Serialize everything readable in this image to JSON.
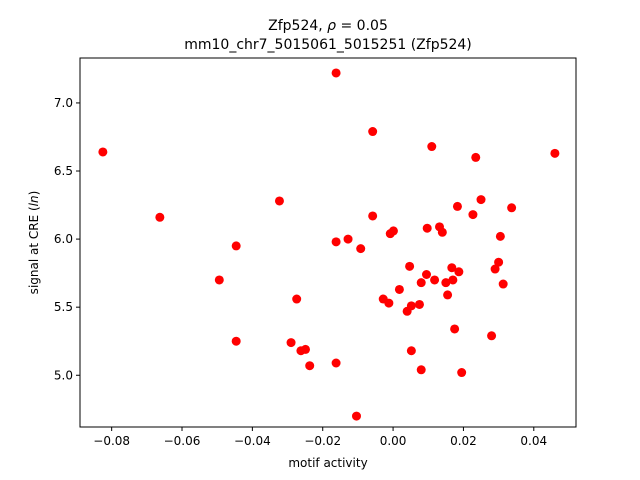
{
  "chart_data": {
    "type": "scatter",
    "title_line1_prefix": "Zfp524, ",
    "title_line1_rho": "ρ",
    "title_line1_suffix": " = 0.05",
    "title_line2": "mm10_chr7_5015061_5015251 (Zfp524)",
    "xlabel": "motif activity",
    "ylabel_prefix": "signal at CRE (",
    "ylabel_italic": "ln",
    "ylabel_suffix": ")",
    "xlim": [
      -0.089,
      0.052
    ],
    "ylim": [
      4.62,
      7.33
    ],
    "x_ticks": [
      -0.08,
      -0.06,
      -0.04,
      -0.02,
      0.0,
      0.02,
      0.04
    ],
    "x_tick_labels": [
      "−0.08",
      "−0.06",
      "−0.04",
      "−0.02",
      "0.00",
      "0.02",
      "0.04"
    ],
    "y_ticks": [
      5.0,
      5.5,
      6.0,
      6.5,
      7.0
    ],
    "y_tick_labels": [
      "5.0",
      "5.5",
      "6.0",
      "6.5",
      "7.0"
    ],
    "marker_color": "#ff0000",
    "grid": false,
    "points": [
      {
        "x": -0.0825,
        "y": 6.64
      },
      {
        "x": -0.0663,
        "y": 6.16
      },
      {
        "x": -0.0494,
        "y": 5.7
      },
      {
        "x": -0.0446,
        "y": 5.95
      },
      {
        "x": -0.0446,
        "y": 5.25
      },
      {
        "x": -0.0323,
        "y": 6.28
      },
      {
        "x": -0.029,
        "y": 5.24
      },
      {
        "x": -0.0274,
        "y": 5.56
      },
      {
        "x": -0.0262,
        "y": 5.18
      },
      {
        "x": -0.0249,
        "y": 5.19
      },
      {
        "x": -0.0237,
        "y": 5.07
      },
      {
        "x": -0.0162,
        "y": 7.22
      },
      {
        "x": -0.0162,
        "y": 5.98
      },
      {
        "x": -0.0162,
        "y": 5.09
      },
      {
        "x": -0.0128,
        "y": 6.0
      },
      {
        "x": -0.0104,
        "y": 4.7
      },
      {
        "x": -0.0092,
        "y": 5.93
      },
      {
        "x": -0.0058,
        "y": 6.79
      },
      {
        "x": -0.0058,
        "y": 6.17
      },
      {
        "x": -0.0028,
        "y": 5.56
      },
      {
        "x": -0.0012,
        "y": 5.53
      },
      {
        "x": -0.0008,
        "y": 6.04
      },
      {
        "x": 0.0001,
        "y": 6.06
      },
      {
        "x": 0.0018,
        "y": 5.63
      },
      {
        "x": 0.004,
        "y": 5.47
      },
      {
        "x": 0.0047,
        "y": 5.8
      },
      {
        "x": 0.0052,
        "y": 5.51
      },
      {
        "x": 0.0052,
        "y": 5.18
      },
      {
        "x": 0.0075,
        "y": 5.52
      },
      {
        "x": 0.008,
        "y": 5.68
      },
      {
        "x": 0.008,
        "y": 5.04
      },
      {
        "x": 0.0095,
        "y": 5.74
      },
      {
        "x": 0.0097,
        "y": 6.08
      },
      {
        "x": 0.011,
        "y": 6.68
      },
      {
        "x": 0.0118,
        "y": 5.7
      },
      {
        "x": 0.0132,
        "y": 6.09
      },
      {
        "x": 0.014,
        "y": 6.05
      },
      {
        "x": 0.015,
        "y": 5.68
      },
      {
        "x": 0.0155,
        "y": 5.59
      },
      {
        "x": 0.0167,
        "y": 5.79
      },
      {
        "x": 0.017,
        "y": 5.7
      },
      {
        "x": 0.0175,
        "y": 5.34
      },
      {
        "x": 0.0183,
        "y": 6.24
      },
      {
        "x": 0.0187,
        "y": 5.76
      },
      {
        "x": 0.0195,
        "y": 5.02
      },
      {
        "x": 0.0227,
        "y": 6.18
      },
      {
        "x": 0.0235,
        "y": 6.6
      },
      {
        "x": 0.025,
        "y": 6.29
      },
      {
        "x": 0.028,
        "y": 5.29
      },
      {
        "x": 0.029,
        "y": 5.78
      },
      {
        "x": 0.03,
        "y": 5.83
      },
      {
        "x": 0.0305,
        "y": 6.02
      },
      {
        "x": 0.0313,
        "y": 5.67
      },
      {
        "x": 0.0337,
        "y": 6.23
      },
      {
        "x": 0.046,
        "y": 6.63
      }
    ]
  }
}
